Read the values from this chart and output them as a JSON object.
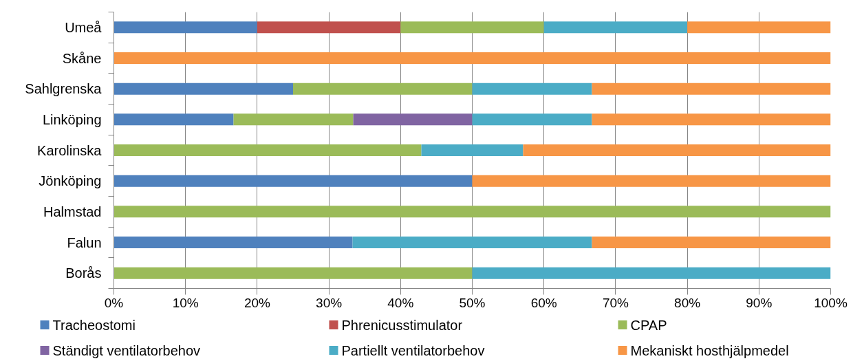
{
  "chart_data": {
    "type": "bar",
    "orientation": "horizontal",
    "stacked": true,
    "categories": [
      "Umeå",
      "Skåne",
      "Sahlgrenska",
      "Linköping",
      "Karolinska",
      "Jönköping",
      "Halmstad",
      "Falun",
      "Borås"
    ],
    "series": [
      {
        "name": "Tracheostomi",
        "color": "#4f81bd",
        "values": [
          20,
          null,
          25,
          16.7,
          null,
          50,
          null,
          33.3,
          null
        ]
      },
      {
        "name": "Phrenicusstimulator",
        "color": "#c0504d",
        "values": [
          20,
          null,
          null,
          null,
          null,
          null,
          null,
          null,
          null
        ]
      },
      {
        "name": "CPAP",
        "color": "#9bbb59",
        "values": [
          20,
          null,
          25,
          16.7,
          42.9,
          null,
          100,
          null,
          50
        ]
      },
      {
        "name": "Ständigt ventilatorbehov",
        "color": "#8064a2",
        "values": [
          null,
          null,
          null,
          16.6,
          null,
          null,
          null,
          null,
          null
        ]
      },
      {
        "name": "Partiellt ventilatorbehov",
        "color": "#4bacc6",
        "values": [
          20,
          null,
          16.7,
          16.7,
          14.2,
          null,
          null,
          33.4,
          50
        ]
      },
      {
        "name": "Mekaniskt hosthjälpmedel",
        "color": "#f79646",
        "values": [
          20,
          100,
          33.3,
          33.3,
          42.9,
          50,
          null,
          33.3,
          null
        ]
      }
    ],
    "xlim": [
      0,
      100
    ],
    "xticks": [
      {
        "value": 0,
        "label": "0%"
      },
      {
        "value": 10,
        "label": "10%"
      },
      {
        "value": 20,
        "label": "20%"
      },
      {
        "value": 30,
        "label": "30%"
      },
      {
        "value": 40,
        "label": "40%"
      },
      {
        "value": 50,
        "label": "50%"
      },
      {
        "value": 60,
        "label": "60%"
      },
      {
        "value": 70,
        "label": "70%"
      },
      {
        "value": 80,
        "label": "80%"
      },
      {
        "value": 90,
        "label": "90%"
      },
      {
        "value": 100,
        "label": "100%"
      }
    ],
    "grid": "x",
    "legend": "bottom"
  }
}
